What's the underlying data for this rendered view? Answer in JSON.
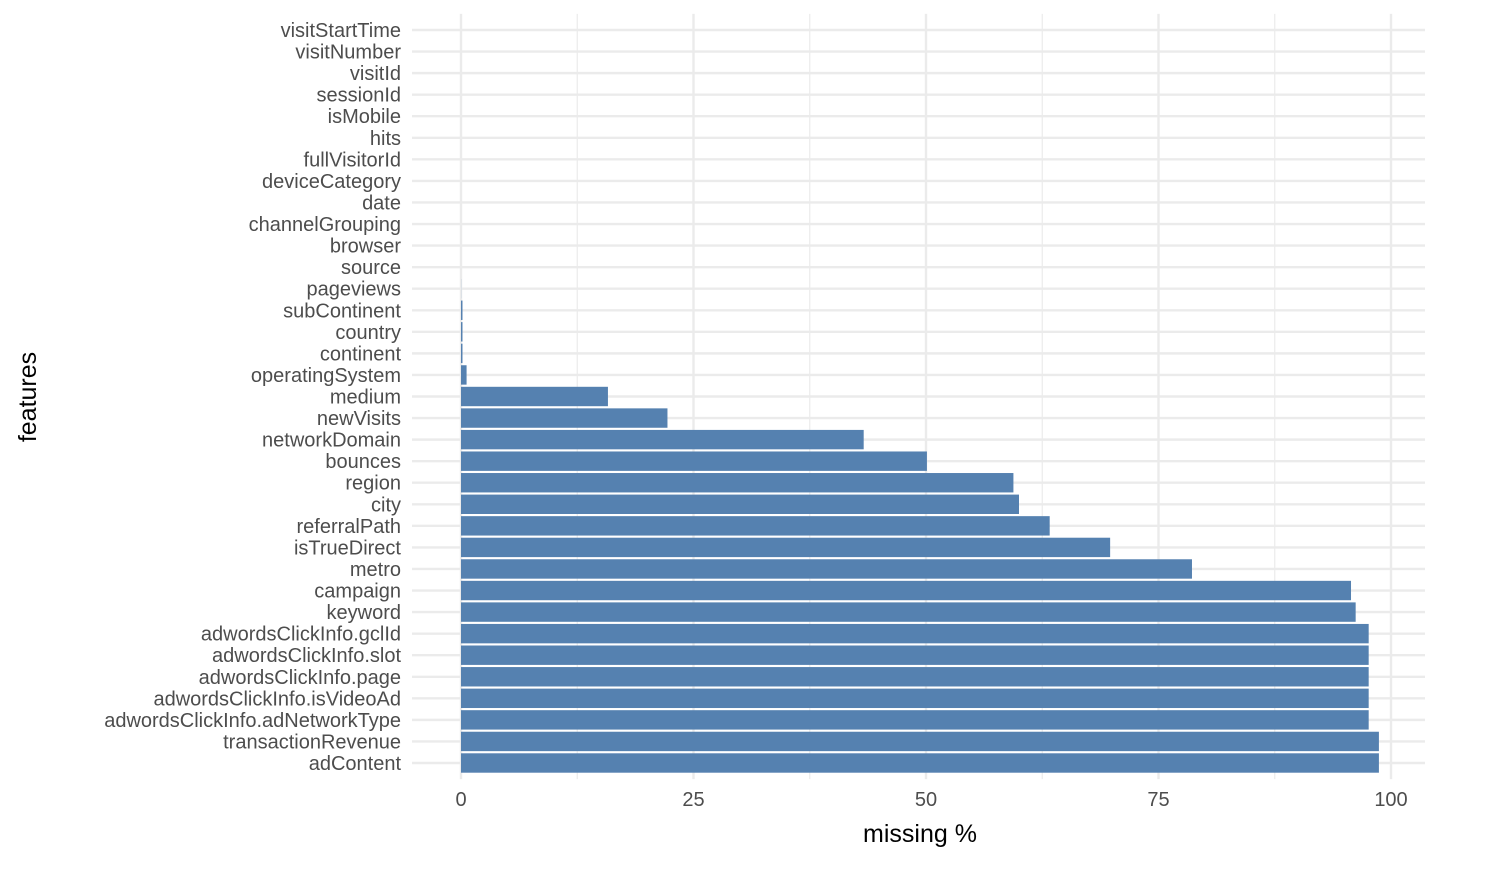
{
  "chart_data": {
    "type": "bar",
    "orientation": "horizontal",
    "xlabel": "missing %",
    "ylabel": "features",
    "xlim": [
      0,
      100
    ],
    "xticks": [
      0,
      25,
      50,
      75,
      100
    ],
    "grid": true,
    "bar_color": "#5581b0",
    "categories": [
      "visitStartTime",
      "visitNumber",
      "visitId",
      "sessionId",
      "isMobile",
      "hits",
      "fullVisitorId",
      "deviceCategory",
      "date",
      "channelGrouping",
      "browser",
      "source",
      "pageviews",
      "subContinent",
      "country",
      "continent",
      "operatingSystem",
      "medium",
      "newVisits",
      "networkDomain",
      "bounces",
      "region",
      "city",
      "referralPath",
      "isTrueDirect",
      "metro",
      "campaign",
      "keyword",
      "adwordsClickInfo.gclId",
      "adwordsClickInfo.slot",
      "adwordsClickInfo.page",
      "adwordsClickInfo.isVideoAd",
      "adwordsClickInfo.adNetworkType",
      "transactionRevenue",
      "adContent"
    ],
    "values": [
      0,
      0,
      0,
      0,
      0,
      0,
      0,
      0,
      0,
      0,
      0,
      0,
      0.01,
      0.16,
      0.16,
      0.16,
      0.6,
      15.8,
      22.2,
      43.3,
      50.1,
      59.4,
      60.0,
      63.3,
      69.8,
      78.6,
      95.7,
      96.2,
      97.6,
      97.6,
      97.6,
      97.6,
      97.6,
      98.7,
      98.7
    ]
  }
}
